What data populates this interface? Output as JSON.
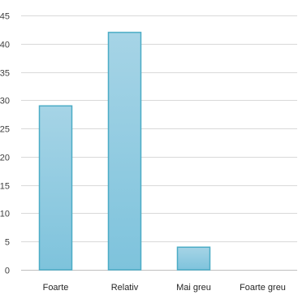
{
  "chart_data": {
    "type": "bar",
    "title": "",
    "xlabel": "",
    "ylabel": "",
    "categories": [
      "Foarte",
      "Relativ",
      "Mai greu",
      "Foarte greu"
    ],
    "values": [
      29,
      42,
      4,
      0
    ],
    "ylim": [
      0,
      45
    ],
    "yticks": [
      0,
      5,
      10,
      15,
      20,
      25,
      30,
      35,
      40,
      45
    ],
    "grid": true,
    "legend": "none",
    "colors": {
      "bar_fill_top": "#a6d4e6",
      "bar_fill_bottom": "#7ec3dc",
      "bar_stroke": "#4bacc6",
      "grid": "#d9d9d9"
    }
  }
}
